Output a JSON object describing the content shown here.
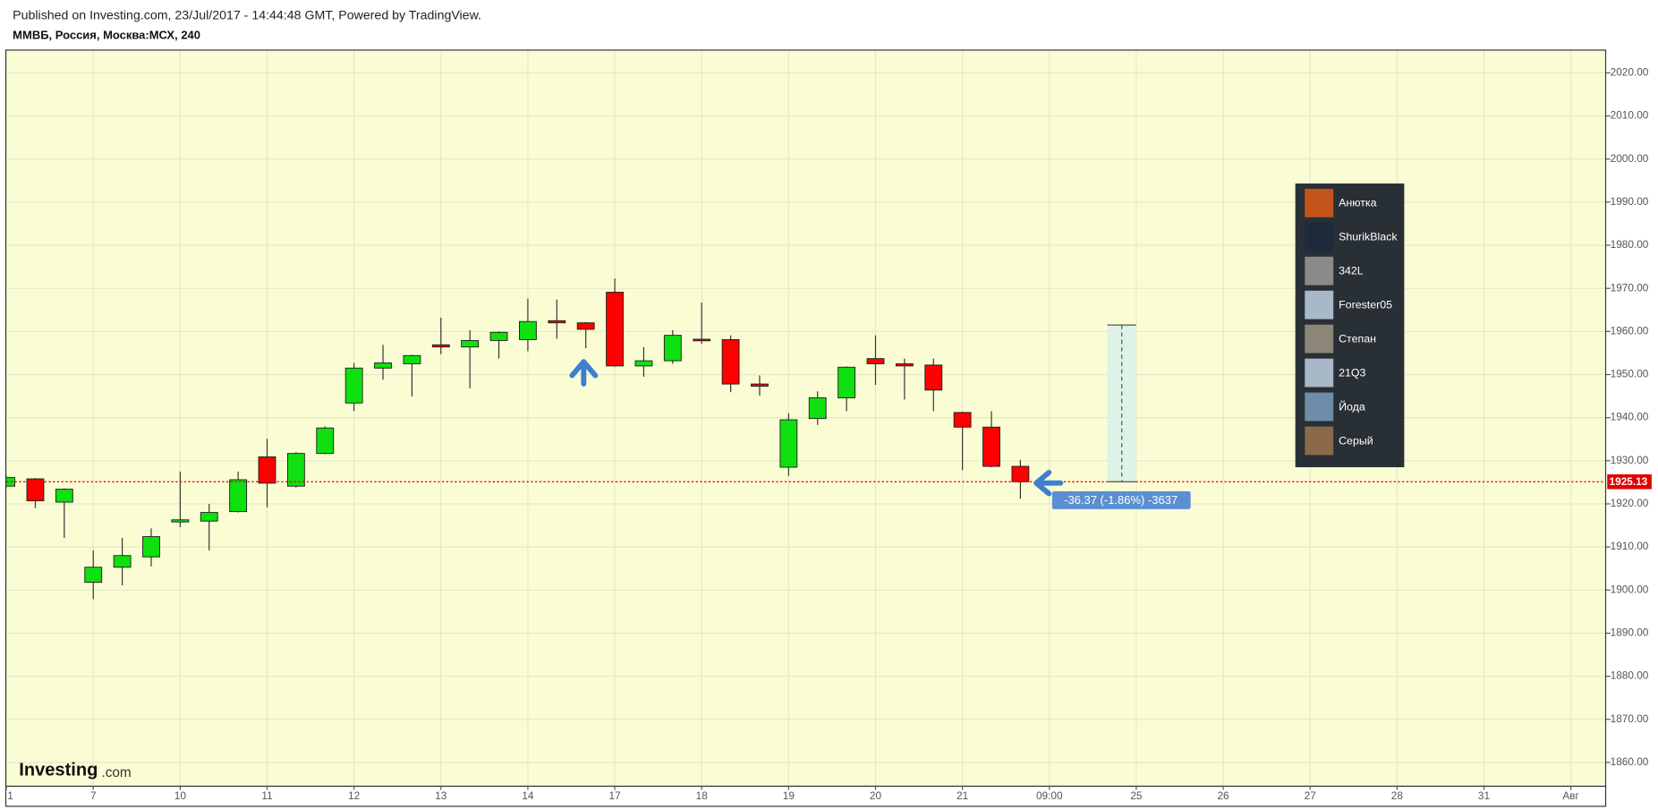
{
  "chart_data": {
    "type": "candlestick",
    "subtitle": "Published on Investing.com, 23/Jul/2017 - 14:44:48 GMT, Powered by TradingView.",
    "title": "ММВБ, Россия, Москва:МСХ, 240",
    "logo": [
      "Investing",
      ".com"
    ],
    "categories": [
      "1",
      null,
      null,
      "7",
      null,
      null,
      "10",
      null,
      null,
      "11",
      null,
      null,
      "12",
      null,
      null,
      "13",
      null,
      null,
      "14",
      null,
      null,
      "17",
      null,
      null,
      "18",
      null,
      null,
      "19",
      null,
      null,
      "20",
      null,
      null,
      "21",
      null,
      null,
      "09:00",
      null,
      null,
      "25",
      null,
      null,
      "26",
      null,
      null,
      "27",
      null,
      null,
      "28",
      null,
      null,
      "31",
      null,
      null,
      "Авг"
    ],
    "open": [
      1924.1,
      1925.8,
      1920.4,
      1901.8,
      1905.3,
      1907.7,
      1915.8,
      1916.0,
      1918.2,
      1930.9,
      1924.1,
      1931.7,
      1943.4,
      1951.5,
      1952.5,
      1956.9,
      1956.4,
      1957.9,
      1958.1,
      1962.5,
      1962.0,
      1969.1,
      1952.0,
      1953.2,
      1958.2,
      1958.1,
      1947.8,
      1928.5,
      1939.8,
      1944.6,
      1953.7,
      1952.5,
      1952.2,
      1941.2,
      1937.8,
      1928.7,
      null,
      null,
      null,
      null,
      null,
      null,
      null,
      null,
      null,
      null,
      null,
      null,
      null,
      null,
      null,
      null,
      null,
      null,
      null
    ],
    "high": [
      1926.5,
      1926.0,
      1923.6,
      1909.2,
      1912.1,
      1914.3,
      1927.5,
      1920.0,
      1927.5,
      1935.1,
      1932.0,
      1938.0,
      1952.7,
      1956.9,
      1954.6,
      1963.2,
      1960.3,
      1960.0,
      1967.6,
      1967.4,
      1962.2,
      1972.3,
      1956.4,
      1960.3,
      1966.7,
      1959.1,
      1949.8,
      1941.0,
      1946.1,
      1951.9,
      1959.1,
      1953.7,
      1953.7,
      1941.4,
      1941.5,
      1930.2,
      null,
      null,
      null,
      null,
      null,
      null,
      null,
      null,
      null,
      null,
      null,
      null,
      null,
      null,
      null,
      null,
      null,
      null,
      null
    ],
    "low": [
      1923.8,
      1919.0,
      1912.1,
      1897.9,
      1901.1,
      1905.5,
      1914.6,
      1909.2,
      1918.0,
      1919.2,
      1923.8,
      1931.5,
      1941.5,
      1948.8,
      1944.9,
      1954.7,
      1946.8,
      1953.7,
      1955.4,
      1958.3,
      1956.1,
      1951.8,
      1949.5,
      1952.5,
      1957.1,
      1945.9,
      1945.1,
      1926.5,
      1938.3,
      1941.5,
      1947.6,
      1944.2,
      1941.5,
      1927.8,
      1928.5,
      1921.2,
      null,
      null,
      null,
      null,
      null,
      null,
      null,
      null,
      null,
      null,
      null,
      null,
      null,
      null,
      null,
      null,
      null,
      null,
      null
    ],
    "close": [
      1926.1,
      1920.7,
      1923.4,
      1905.3,
      1908.0,
      1912.4,
      1916.3,
      1918.0,
      1925.6,
      1924.8,
      1931.7,
      1937.6,
      1951.5,
      1952.7,
      1954.4,
      1956.4,
      1957.9,
      1959.8,
      1962.3,
      1962.0,
      1960.5,
      1952.0,
      1953.2,
      1959.1,
      1958.0,
      1947.8,
      1947.3,
      1939.5,
      1944.6,
      1951.7,
      1952.5,
      1952.0,
      1946.4,
      1937.8,
      1928.7,
      1925.13,
      null,
      null,
      null,
      null,
      null,
      null,
      null,
      null,
      null,
      null,
      null,
      null,
      null,
      null,
      null,
      null,
      null,
      null,
      null
    ],
    "up_color": "#0fe00f",
    "down_color": "#ff0000",
    "ylim": [
      1854.6,
      2025.4
    ],
    "yticks": [
      {
        "value": 1860,
        "label": "1860.00"
      },
      {
        "value": 1870,
        "label": "1870.00"
      },
      {
        "value": 1880,
        "label": "1880.00"
      },
      {
        "value": 1890,
        "label": "1890.00"
      },
      {
        "value": 1900,
        "label": "1900.00"
      },
      {
        "value": 1910,
        "label": "1910.00"
      },
      {
        "value": 1920,
        "label": "1920.00"
      },
      {
        "value": 1930,
        "label": "1930.00"
      },
      {
        "value": 1940,
        "label": "1940.00"
      },
      {
        "value": 1950,
        "label": "1950.00"
      },
      {
        "value": 1960,
        "label": "1960.00"
      },
      {
        "value": 1970,
        "label": "1970.00"
      },
      {
        "value": 1980,
        "label": "1980.00"
      },
      {
        "value": 1990,
        "label": "1990.00"
      },
      {
        "value": 2000,
        "label": "2000.00"
      },
      {
        "value": 2010,
        "label": "2010.00"
      },
      {
        "value": 2020,
        "label": "2020.00"
      }
    ],
    "grid": true,
    "last_price": 1925.13,
    "measure": {
      "label": "-36.37 (-1.86%) -3637",
      "from": 1961.5,
      "to": 1925.13
    },
    "legend_names": [
      "Анютка",
      "ShurikBlack",
      "342L",
      "Forester05",
      "Степан",
      "21Q3",
      "Йода",
      "Серый"
    ]
  }
}
